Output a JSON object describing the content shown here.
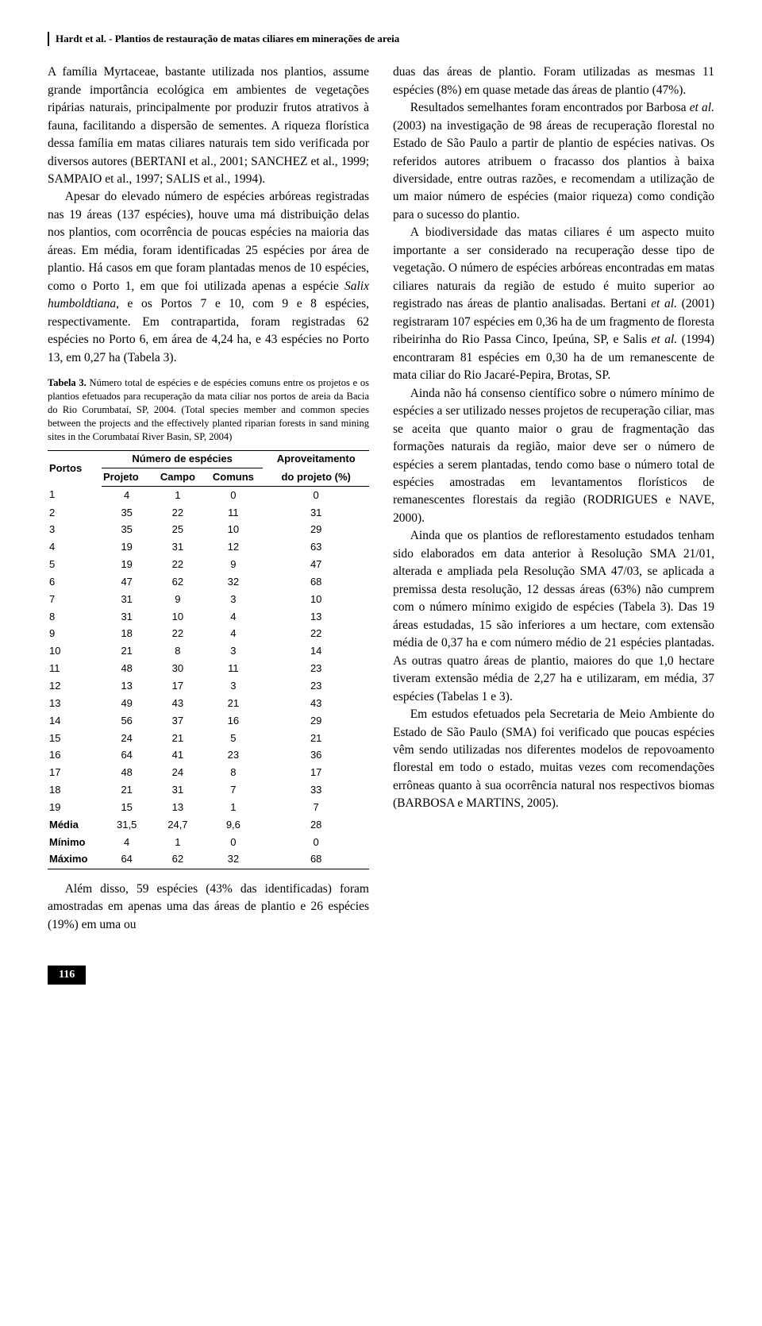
{
  "header": {
    "authors": "Hardt et al.",
    "title_rest": " - Plantios de restauração de matas ciliares em minerações de areia"
  },
  "col_left": {
    "p1": "A família Myrtaceae, bastante utilizada nos plantios, assume grande importância ecológica em ambientes de vegetações ripárias naturais, principalmente por produzir frutos atrativos à fauna, facilitando a dispersão de sementes. A riqueza florística dessa família em matas ciliares naturais tem sido verificada por diversos autores (BERTANI et al., 2001; SANCHEZ et al., 1999; SAMPAIO et al., 1997; SALIS et al., 1994).",
    "p2a": "Apesar do elevado número de espécies arbóreas registradas nas 19 áreas (137 espécies), houve uma má distribuição delas nos plantios, com ocorrência de poucas espécies na maioria das áreas. Em média, foram identificadas 25 espécies por área de plantio. Há casos em que foram plantadas menos de 10 espécies, como o Porto 1, em que foi utilizada apenas a espécie ",
    "p2_species": "Salix humboldtiana",
    "p2b": ", e os Portos 7 e 10, com 9 e 8 espécies, respectivamente. Em contrapartida, foram registradas 62 espécies no Porto 6, em área de 4,24 ha, e 43 espécies no Porto 13, em 0,27 ha (Tabela 3).",
    "p3": "Além disso, 59 espécies (43% das identificadas) foram amostradas em apenas uma das áreas de plantio e 26 espécies (19%) em uma ou"
  },
  "table": {
    "caption_bold": "Tabela 3.",
    "caption_rest": " Número total de espécies e de espécies comuns entre os projetos e os plantios efetuados para recuperação da mata ciliar nos portos de areia da Bacia do Rio Corumbataí, SP, 2004. (Total species member and common species between the projects and the effectively planted riparian forests in sand mining sites in the Corumbataí River Basin, SP, 2004)",
    "h_portos": "Portos",
    "h_numero": "Número de espécies",
    "h_aprov": "Aproveitamento",
    "h_projeto": "Projeto",
    "h_campo": "Campo",
    "h_comuns": "Comuns",
    "h_doprojeto": "do projeto (%)",
    "rows": [
      [
        "1",
        "4",
        "1",
        "0",
        "0"
      ],
      [
        "2",
        "35",
        "22",
        "11",
        "31"
      ],
      [
        "3",
        "35",
        "25",
        "10",
        "29"
      ],
      [
        "4",
        "19",
        "31",
        "12",
        "63"
      ],
      [
        "5",
        "19",
        "22",
        "9",
        "47"
      ],
      [
        "6",
        "47",
        "62",
        "32",
        "68"
      ],
      [
        "7",
        "31",
        "9",
        "3",
        "10"
      ],
      [
        "8",
        "31",
        "10",
        "4",
        "13"
      ],
      [
        "9",
        "18",
        "22",
        "4",
        "22"
      ],
      [
        "10",
        "21",
        "8",
        "3",
        "14"
      ],
      [
        "11",
        "48",
        "30",
        "11",
        "23"
      ],
      [
        "12",
        "13",
        "17",
        "3",
        "23"
      ],
      [
        "13",
        "49",
        "43",
        "21",
        "43"
      ],
      [
        "14",
        "56",
        "37",
        "16",
        "29"
      ],
      [
        "15",
        "24",
        "21",
        "5",
        "21"
      ],
      [
        "16",
        "64",
        "41",
        "23",
        "36"
      ],
      [
        "17",
        "48",
        "24",
        "8",
        "17"
      ],
      [
        "18",
        "21",
        "31",
        "7",
        "33"
      ],
      [
        "19",
        "15",
        "13",
        "1",
        "7"
      ],
      [
        "Média",
        "31,5",
        "24,7",
        "9,6",
        "28"
      ],
      [
        "Mínimo",
        "4",
        "1",
        "0",
        "0"
      ],
      [
        "Máximo",
        "64",
        "62",
        "32",
        "68"
      ]
    ]
  },
  "col_right": {
    "p1": "duas das áreas de plantio. Foram utilizadas as mesmas 11 espécies (8%) em quase metade das áreas de plantio (47%).",
    "p2a": "Resultados semelhantes foram encontrados por Barbosa ",
    "p2_it1": "et al.",
    "p2b": " (2003) na investigação de 98 áreas de recuperação florestal no Estado de São Paulo a partir de plantio de espécies nativas. Os referidos autores atribuem o fracasso dos plantios à baixa diversidade, entre outras razões, e recomendam a utilização de um maior número de espécies (maior riqueza) como condição para o sucesso do plantio.",
    "p3a": "A biodiversidade das matas ciliares é um aspecto muito importante a ser considerado na recuperação desse tipo de vegetação. O número de espécies arbóreas encontradas em matas ciliares naturais da região de estudo é muito superior ao registrado nas áreas de plantio analisadas. Bertani ",
    "p3_it1": "et al.",
    "p3b": " (2001) registraram 107 espécies em 0,36 ha de um fragmento de floresta ribeirinha do Rio Passa Cinco, Ipeúna, SP, e Salis ",
    "p3_it2": "et al.",
    "p3c": " (1994) encontraram 81 espécies em 0,30 ha de um remanescente de mata ciliar do Rio Jacaré-Pepira, Brotas, SP.",
    "p4": "Ainda não há consenso científico sobre o número mínimo de espécies a ser utilizado nesses projetos de recuperação ciliar, mas se aceita que quanto maior o grau de fragmentação das formações naturais da região, maior deve ser o número de espécies a serem plantadas, tendo como base o número total de espécies amostradas em levantamentos florísticos de remanescentes florestais da região (RODRIGUES e NAVE, 2000).",
    "p5": "Ainda que os plantios de reflorestamento estudados tenham sido elaborados em data anterior à Resolução SMA 21/01, alterada e ampliada pela Resolução SMA 47/03, se aplicada a premissa desta resolução, 12 dessas áreas (63%) não cumprem com o número mínimo exigido de espécies (Tabela 3). Das 19 áreas estudadas, 15 são inferiores a um hectare, com extensão média de 0,37 ha e com número médio de 21 espécies plantadas. As outras quatro áreas de plantio, maiores do que 1,0 hectare tiveram extensão média de 2,27 ha e utilizaram, em média, 37 espécies (Tabelas 1 e 3).",
    "p6": "Em estudos efetuados pela Secretaria de Meio Ambiente do Estado de São Paulo (SMA) foi verificado que poucas espécies vêm sendo utilizadas nos diferentes modelos de repovoamento florestal em todo o estado, muitas vezes com recomendações errôneas quanto à sua ocorrência natural nos respectivos biomas (BARBOSA e MARTINS, 2005)."
  },
  "page_number": "116"
}
